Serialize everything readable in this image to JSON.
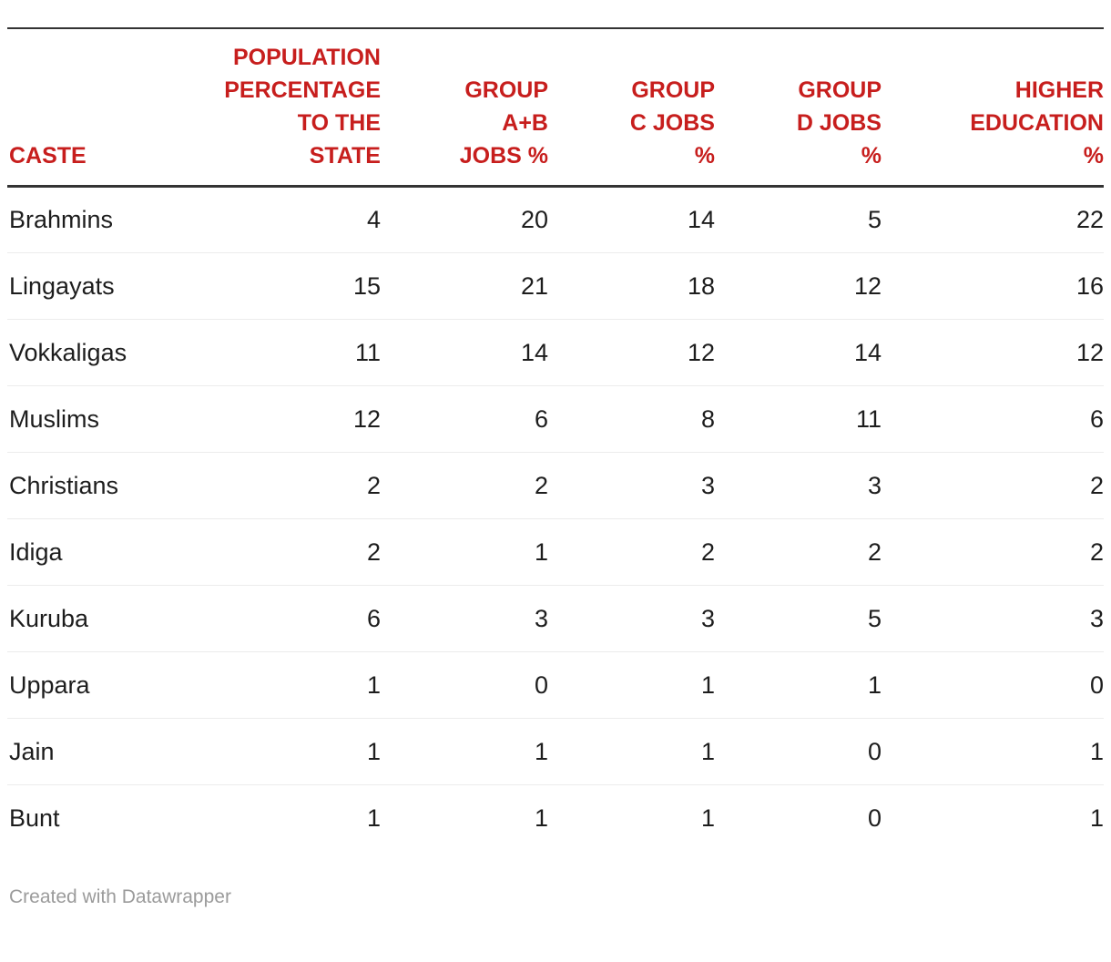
{
  "chart_data": {
    "type": "table",
    "columns": [
      {
        "label": "CASTE"
      },
      {
        "label": "POPULATION\nPERCENTAGE\nTO THE\nSTATE"
      },
      {
        "label": "GROUP\nA+B\nJOBS %"
      },
      {
        "label": "GROUP\nC JOBS\n%"
      },
      {
        "label": "GROUP\nD JOBS\n%"
      },
      {
        "label": "HIGHER\nEDUCATION\n%"
      }
    ],
    "rows": [
      [
        "Brahmins",
        4,
        20,
        14,
        5,
        22
      ],
      [
        "Lingayats",
        15,
        21,
        18,
        12,
        16
      ],
      [
        "Vokkaligas",
        11,
        14,
        12,
        14,
        12
      ],
      [
        "Muslims",
        12,
        6,
        8,
        11,
        6
      ],
      [
        "Christians",
        2,
        2,
        3,
        3,
        2
      ],
      [
        "Idiga",
        2,
        1,
        2,
        2,
        2
      ],
      [
        "Kuruba",
        6,
        3,
        3,
        5,
        3
      ],
      [
        "Uppara",
        1,
        0,
        1,
        1,
        0
      ],
      [
        "Jain",
        1,
        1,
        1,
        0,
        1
      ],
      [
        "Bunt",
        1,
        1,
        1,
        0,
        1
      ]
    ]
  },
  "footer": {
    "attribution": "Created with Datawrapper"
  },
  "colors": {
    "header_text": "#c71e1d",
    "body_text": "#1d1d1d",
    "rule": "#333333",
    "row_separator": "#ececec",
    "footer_text": "#9b9b9b",
    "background": "#ffffff"
  }
}
